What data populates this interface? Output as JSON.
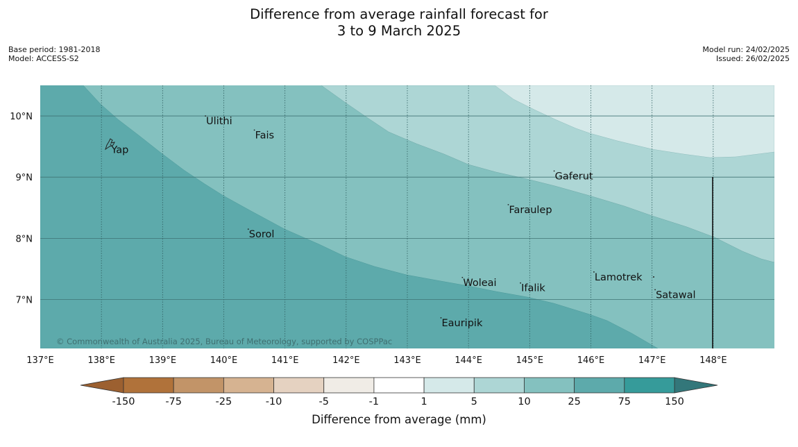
{
  "title": {
    "line1": "Difference from average rainfall forecast for",
    "line2": "3 to 9 March 2025"
  },
  "meta_left": {
    "base_period": "Base period: 1981-2018",
    "model": "Model: ACCESS-S2"
  },
  "meta_right": {
    "model_run": "Model run: 24/02/2025",
    "issued": "Issued: 26/02/2025"
  },
  "copyright": "© Commonwealth of Australia 2025, Bureau of Meteorology, supported by COSPPac",
  "map": {
    "lon_range": [
      137.0,
      149.0
    ],
    "lat_range": [
      6.2,
      10.5
    ],
    "lon_ticks": [
      {
        "value": 137,
        "label": "137°E"
      },
      {
        "value": 138,
        "label": "138°E"
      },
      {
        "value": 139,
        "label": "139°E"
      },
      {
        "value": 140,
        "label": "140°E"
      },
      {
        "value": 141,
        "label": "141°E"
      },
      {
        "value": 142,
        "label": "142°E"
      },
      {
        "value": 143,
        "label": "143°E"
      },
      {
        "value": 144,
        "label": "144°E"
      },
      {
        "value": 145,
        "label": "145°E"
      },
      {
        "value": 146,
        "label": "146°E"
      },
      {
        "value": 147,
        "label": "147°E"
      },
      {
        "value": 148,
        "label": "148°E"
      }
    ],
    "lat_ticks": [
      {
        "value": 10,
        "label": "10°N"
      },
      {
        "value": 9,
        "label": "9°N"
      },
      {
        "value": 8,
        "label": "8°N"
      },
      {
        "value": 7,
        "label": "7°N"
      }
    ],
    "places": [
      {
        "name": "Ulithi",
        "lon": 139.7,
        "lat": 10.0
      },
      {
        "name": "Fais",
        "lon": 140.5,
        "lat": 9.77
      },
      {
        "name": "Yap",
        "lon": 138.15,
        "lat": 9.53
      },
      {
        "name": "Gaferut",
        "lon": 145.4,
        "lat": 9.1
      },
      {
        "name": "Faraulep",
        "lon": 144.65,
        "lat": 8.55
      },
      {
        "name": "Sorol",
        "lon": 140.4,
        "lat": 8.15
      },
      {
        "name": "Lamotrek",
        "lon": 146.05,
        "lat": 7.45
      },
      {
        "name": "Woleai",
        "lon": 143.9,
        "lat": 7.36
      },
      {
        "name": "Ifalik",
        "lon": 144.85,
        "lat": 7.27
      },
      {
        "name": "Satawal",
        "lon": 147.05,
        "lat": 7.16
      },
      {
        "name": "Eauripik",
        "lon": 143.55,
        "lat": 6.7
      }
    ],
    "zones": [
      {
        "category": "10 to 25",
        "color": "#84c1bf"
      },
      {
        "category": "5 to 10",
        "color": "#add6d5"
      },
      {
        "category": "1 to 5",
        "color": "#d5e9e9"
      },
      {
        "category": "25 to 75",
        "color": "#5daaab"
      }
    ]
  },
  "colorbar": {
    "label": "Difference from average (mm)",
    "ticks": [
      "-150",
      "-75",
      "-25",
      "-10",
      "-5",
      "-1",
      "1",
      "5",
      "10",
      "25",
      "75",
      "150"
    ],
    "low_extend_color": "#9c6030",
    "high_extend_color": "#33777a",
    "colors": [
      "#b0723a",
      "#c29468",
      "#d6b391",
      "#e5d2c1",
      "#f0ece6",
      "#ffffff",
      "#d5e9e9",
      "#add6d5",
      "#84c1bf",
      "#5daaab",
      "#369b9a"
    ]
  }
}
